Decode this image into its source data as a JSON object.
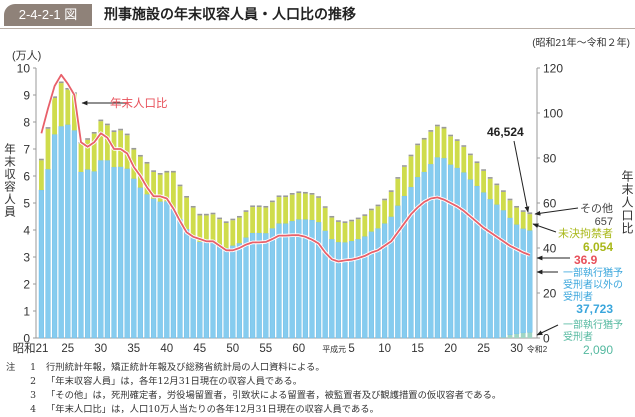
{
  "header": {
    "figure_number": "2-4-2-1 図",
    "title": "刑事施設の年末収容人員・人口比の推移"
  },
  "period": "(昭和21年～令和２年)",
  "chart_data": {
    "type": "bar",
    "stacked": true,
    "title": "刑事施設の年末収容人員・人口比の推移",
    "left_axis": {
      "label": "年末収容人員",
      "unit": "(万人)",
      "ylim": [
        0,
        10
      ],
      "ticks": [
        0,
        1,
        2,
        3,
        4,
        5,
        6,
        7,
        8,
        9,
        10
      ]
    },
    "right_axis": {
      "label": "年末人口比",
      "ylim": [
        0,
        120
      ],
      "ticks": [
        0,
        20,
        40,
        60,
        80,
        100,
        120
      ]
    },
    "grid": false,
    "categories": [
      "昭和21",
      "昭和22",
      "昭和23",
      "昭和24",
      "昭和25",
      "昭和26",
      "昭和27",
      "昭和28",
      "昭和29",
      "昭和30",
      "昭和31",
      "昭和32",
      "昭和33",
      "昭和34",
      "昭和35",
      "昭和36",
      "昭和37",
      "昭和38",
      "昭和39",
      "昭和40",
      "昭和41",
      "昭和42",
      "昭和43",
      "昭和44",
      "昭和45",
      "昭和46",
      "昭和47",
      "昭和48",
      "昭和49",
      "昭和50",
      "昭和51",
      "昭和52",
      "昭和53",
      "昭和54",
      "昭和55",
      "昭和56",
      "昭和57",
      "昭和58",
      "昭和59",
      "昭和60",
      "昭和61",
      "昭和62",
      "昭和63",
      "平成元",
      "平成2",
      "平成3",
      "平成4",
      "平成5",
      "平成6",
      "平成7",
      "平成8",
      "平成9",
      "平成10",
      "平成11",
      "平成12",
      "平成13",
      "平成14",
      "平成15",
      "平成16",
      "平成17",
      "平成18",
      "平成19",
      "平成20",
      "平成21",
      "平成22",
      "平成23",
      "平成24",
      "平成25",
      "平成26",
      "平成27",
      "平成28",
      "平成29",
      "平成30",
      "令和元",
      "令和2"
    ],
    "x_tick_labels": [
      "昭和21",
      "25",
      "30",
      "35",
      "40",
      "45",
      "50",
      "55",
      "60",
      "平成元",
      "5",
      "10",
      "15",
      "20",
      "25",
      "30",
      "令和2"
    ],
    "x_tick_categories": [
      "昭和21",
      "昭和25",
      "昭和30",
      "昭和35",
      "昭和40",
      "昭和45",
      "昭和50",
      "昭和55",
      "昭和60",
      "平成元",
      "平成5",
      "平成10",
      "平成15",
      "平成20",
      "平成25",
      "平成30",
      "令和2"
    ],
    "series": [
      {
        "name": "一部執行猶予受刑者",
        "type": "bar",
        "axis": "left",
        "color": "#9fd6c4",
        "values": [
          0,
          0,
          0,
          0,
          0,
          0,
          0,
          0,
          0,
          0,
          0,
          0,
          0,
          0,
          0,
          0,
          0,
          0,
          0,
          0,
          0,
          0,
          0,
          0,
          0,
          0,
          0,
          0,
          0,
          0,
          0,
          0,
          0,
          0,
          0,
          0,
          0,
          0,
          0,
          0,
          0,
          0,
          0,
          0,
          0,
          0,
          0,
          0,
          0,
          0,
          0,
          0,
          0,
          0,
          0,
          0,
          0,
          0,
          0,
          0,
          0,
          0,
          0,
          0,
          0,
          0,
          0,
          0,
          0,
          0,
          0.03,
          0.12,
          0.16,
          0.19,
          0.209
        ]
      },
      {
        "name": "一部執行猶予受刑者以外の受刑者",
        "type": "bar",
        "axis": "left",
        "color": "#86ccef",
        "values": [
          5.48,
          6.25,
          7.54,
          7.84,
          7.9,
          7.69,
          6.15,
          6.24,
          6.17,
          6.58,
          6.58,
          6.33,
          6.34,
          6.27,
          5.9,
          5.57,
          5.32,
          5.16,
          5.05,
          5.06,
          4.77,
          4.4,
          4.03,
          3.77,
          3.56,
          3.56,
          3.61,
          3.45,
          3.33,
          3.42,
          3.51,
          3.72,
          3.89,
          3.89,
          3.88,
          4.06,
          4.24,
          4.24,
          4.33,
          4.39,
          4.39,
          4.37,
          4.29,
          3.97,
          3.66,
          3.55,
          3.54,
          3.59,
          3.66,
          3.76,
          3.94,
          4.06,
          4.24,
          4.49,
          4.9,
          5.26,
          5.59,
          5.96,
          6.15,
          6.44,
          6.69,
          6.66,
          6.42,
          6.3,
          6.13,
          5.87,
          5.63,
          5.39,
          5.14,
          4.94,
          4.7,
          4.33,
          4.04,
          3.86,
          3.7723
        ]
      },
      {
        "name": "未決拘禁者",
        "type": "bar",
        "axis": "left",
        "color": "#cfdc4c",
        "values": [
          1.1,
          1.5,
          1.35,
          1.6,
          1.3,
          1.35,
          1.05,
          1.1,
          1.4,
          1.45,
          1.3,
          1.3,
          1.35,
          1.24,
          1.08,
          1.15,
          1.14,
          0.99,
          1.0,
          1.07,
          1.36,
          1.22,
          1.17,
          1.06,
          0.98,
          0.98,
          0.97,
          0.95,
          0.93,
          0.94,
          0.95,
          0.95,
          0.96,
          0.96,
          0.95,
          0.97,
          0.98,
          0.98,
          0.98,
          0.98,
          0.96,
          0.94,
          0.9,
          0.85,
          0.8,
          0.75,
          0.72,
          0.73,
          0.74,
          0.76,
          0.79,
          0.82,
          0.86,
          0.92,
          1.0,
          1.08,
          1.14,
          1.18,
          1.2,
          1.2,
          1.15,
          1.1,
          1.05,
          1.0,
          0.95,
          0.9,
          0.85,
          0.8,
          0.76,
          0.72,
          0.68,
          0.65,
          0.63,
          0.62,
          0.6054
        ]
      },
      {
        "name": "その他",
        "type": "bar",
        "axis": "left",
        "color": "#9a9a9a",
        "values": [
          0.06,
          0.06,
          0.06,
          0.06,
          0.06,
          0.06,
          0.06,
          0.06,
          0.06,
          0.06,
          0.06,
          0.06,
          0.06,
          0.06,
          0.06,
          0.06,
          0.06,
          0.06,
          0.06,
          0.06,
          0.06,
          0.06,
          0.06,
          0.06,
          0.06,
          0.06,
          0.06,
          0.06,
          0.06,
          0.06,
          0.06,
          0.06,
          0.06,
          0.06,
          0.06,
          0.06,
          0.06,
          0.06,
          0.06,
          0.06,
          0.06,
          0.06,
          0.06,
          0.06,
          0.06,
          0.06,
          0.06,
          0.06,
          0.06,
          0.06,
          0.06,
          0.06,
          0.06,
          0.06,
          0.06,
          0.06,
          0.06,
          0.06,
          0.06,
          0.06,
          0.06,
          0.06,
          0.06,
          0.06,
          0.06,
          0.06,
          0.06,
          0.06,
          0.06,
          0.06,
          0.06,
          0.06,
          0.06,
          0.06,
          0.0657
        ]
      },
      {
        "name": "年末人口比",
        "type": "line",
        "axis": "right",
        "color": "#e8606a",
        "values": [
          91,
          102,
          112,
          117,
          113,
          108,
          87,
          85,
          87,
          91,
          89,
          84,
          84,
          82,
          76,
          72,
          67,
          63,
          63,
          62,
          57.5,
          52,
          47,
          45,
          44,
          43,
          43,
          41,
          39,
          39,
          40,
          41.5,
          42.5,
          42.5,
          42.7,
          44,
          45.5,
          45.5,
          45.7,
          45.7,
          45,
          43.7,
          42,
          38,
          35,
          34,
          34.5,
          34.8,
          35.5,
          36.5,
          38,
          39,
          41,
          43,
          47,
          51,
          55,
          58,
          60.5,
          62,
          62.5,
          61.5,
          60,
          58.5,
          56.5,
          54,
          51.5,
          49,
          47,
          45,
          43,
          41,
          39.5,
          38,
          36.9
        ]
      }
    ]
  },
  "annotations": {
    "line_label": "年末人口比",
    "total_2020": "46,524",
    "other_label": "その他",
    "other_value": "657",
    "unsentenced_label": "未決拘禁者",
    "unsentenced_value": "6,054",
    "rate_value": "36.9",
    "sentenced_label_1": "一部執行猶予",
    "sentenced_label_2": "受刑者以外の",
    "sentenced_label_3": "受刑者",
    "sentenced_value": "37,723",
    "partial_label_1": "一部執行猶予",
    "partial_label_2": "受刑者",
    "partial_value": "2,090"
  },
  "colors": {
    "rate_text": "#e8505a",
    "unsentenced_text": "#a9b81a",
    "sentenced_text": "#3aa6dc",
    "partial_text": "#55b9a0",
    "badge": "#8f8279"
  },
  "notes": [
    {
      "mark": "注",
      "num": "1",
      "text": "行刑統計年報，矯正統計年報及び総務省統計局の人口資料による。"
    },
    {
      "mark": "",
      "num": "2",
      "text": "「年末収容人員」は，各年12月31日現在の収容人員である。"
    },
    {
      "mark": "",
      "num": "3",
      "text": "「その他」は，死刑確定者，労役場留置者，引致状による留置者，被監置者及び観護措置の仮収容者である。"
    },
    {
      "mark": "",
      "num": "4",
      "text": "「年末人口比」は，人口10万人当たりの各年12月31日現在の収容人員である。"
    }
  ]
}
